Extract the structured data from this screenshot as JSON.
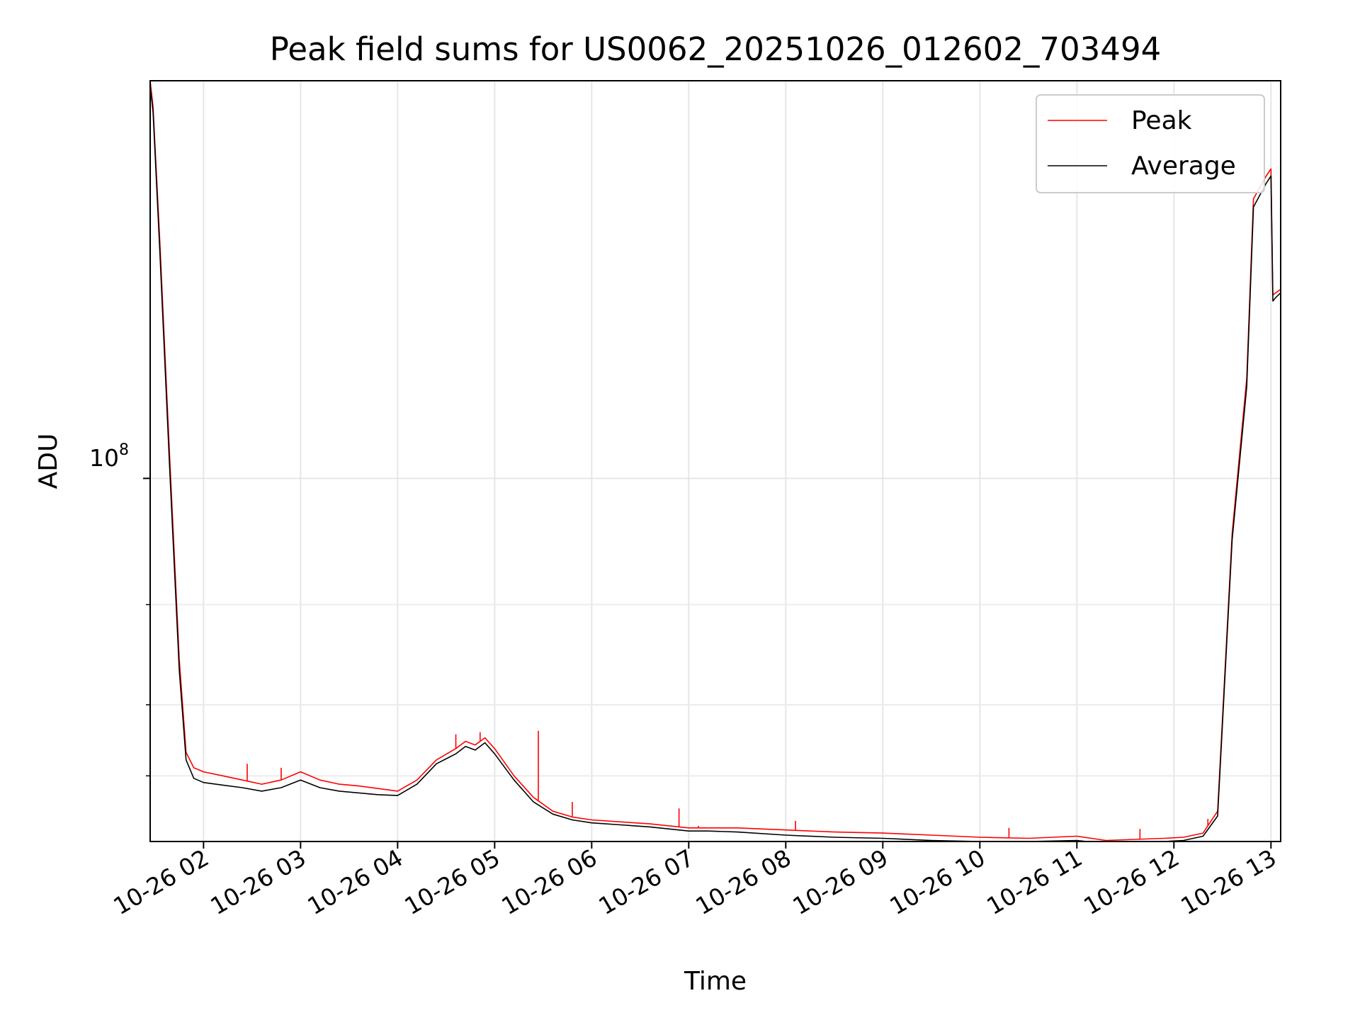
{
  "chart_data": {
    "type": "line",
    "title": "Peak field sums for US0062_20251026_012602_703494",
    "xlabel": "Time",
    "ylabel": "ADU",
    "y_scale": "log",
    "y_major_tick": {
      "value": 100000000,
      "base": "10",
      "exp": "8"
    },
    "y_minor_ticks": [
      30000000,
      40000000,
      60000000
    ],
    "ylim": [
      23000000,
      500000000
    ],
    "x_unit": "hours since 2025-10-26 00:00",
    "xlim": [
      1.45,
      13.1
    ],
    "x_ticks": [
      {
        "value": 2,
        "label": "10-26 02"
      },
      {
        "value": 3,
        "label": "10-26 03"
      },
      {
        "value": 4,
        "label": "10-26 04"
      },
      {
        "value": 5,
        "label": "10-26 05"
      },
      {
        "value": 6,
        "label": "10-26 06"
      },
      {
        "value": 7,
        "label": "10-26 07"
      },
      {
        "value": 8,
        "label": "10-26 08"
      },
      {
        "value": 9,
        "label": "10-26 09"
      },
      {
        "value": 10,
        "label": "10-26 10"
      },
      {
        "value": 11,
        "label": "10-26 11"
      },
      {
        "value": 12,
        "label": "10-26 12"
      },
      {
        "value": 13,
        "label": "10-26 13"
      }
    ],
    "grid": true,
    "legend_position": "top-right",
    "series": [
      {
        "name": "Peak",
        "color": "#ff0000",
        "points": [
          [
            1.45,
            500000000
          ],
          [
            1.48,
            450000000
          ],
          [
            1.55,
            260000000
          ],
          [
            1.65,
            110000000
          ],
          [
            1.75,
            48000000
          ],
          [
            1.82,
            33000000
          ],
          [
            1.9,
            31000000
          ],
          [
            2.0,
            30500000
          ],
          [
            2.2,
            30000000
          ],
          [
            2.4,
            29500000
          ],
          [
            2.6,
            29000000
          ],
          [
            2.8,
            29500000
          ],
          [
            3.0,
            30500000
          ],
          [
            3.2,
            29500000
          ],
          [
            3.4,
            29000000
          ],
          [
            3.6,
            28800000
          ],
          [
            3.8,
            28500000
          ],
          [
            4.0,
            28200000
          ],
          [
            4.2,
            29500000
          ],
          [
            4.4,
            32000000
          ],
          [
            4.6,
            33500000
          ],
          [
            4.7,
            34500000
          ],
          [
            4.8,
            34000000
          ],
          [
            4.9,
            35000000
          ],
          [
            5.0,
            33500000
          ],
          [
            5.2,
            30000000
          ],
          [
            5.4,
            27500000
          ],
          [
            5.6,
            26000000
          ],
          [
            5.8,
            25400000
          ],
          [
            6.0,
            25100000
          ],
          [
            6.3,
            24900000
          ],
          [
            6.6,
            24700000
          ],
          [
            7.0,
            24300000
          ],
          [
            7.2,
            24300000
          ],
          [
            7.5,
            24300000
          ],
          [
            8.0,
            24100000
          ],
          [
            8.5,
            23900000
          ],
          [
            9.0,
            23800000
          ],
          [
            9.5,
            23600000
          ],
          [
            10.0,
            23400000
          ],
          [
            10.5,
            23300000
          ],
          [
            11.0,
            23500000
          ],
          [
            11.3,
            23100000
          ],
          [
            11.6,
            23200000
          ],
          [
            11.9,
            23300000
          ],
          [
            12.1,
            23400000
          ],
          [
            12.3,
            23800000
          ],
          [
            12.45,
            26000000
          ],
          [
            12.6,
            80000000
          ],
          [
            12.75,
            150000000
          ],
          [
            12.82,
            310000000
          ],
          [
            12.95,
            340000000
          ],
          [
            13.0,
            350000000
          ],
          [
            13.02,
            210000000
          ],
          [
            13.05,
            212000000
          ],
          [
            13.1,
            215000000
          ]
        ],
        "spikes": [
          [
            2.45,
            31500000
          ],
          [
            2.8,
            31000000
          ],
          [
            4.6,
            35500000
          ],
          [
            4.85,
            35800000
          ],
          [
            5.45,
            36000000
          ],
          [
            5.8,
            27000000
          ],
          [
            6.9,
            26300000
          ],
          [
            7.1,
            24500000
          ],
          [
            8.1,
            25000000
          ],
          [
            10.3,
            24300000
          ],
          [
            11.65,
            24200000
          ],
          [
            12.35,
            25200000
          ]
        ]
      },
      {
        "name": "Average",
        "color": "#000000",
        "points": [
          [
            1.45,
            490000000
          ],
          [
            1.48,
            440000000
          ],
          [
            1.55,
            250000000
          ],
          [
            1.65,
            105000000
          ],
          [
            1.75,
            46000000
          ],
          [
            1.82,
            32000000
          ],
          [
            1.9,
            29700000
          ],
          [
            2.0,
            29200000
          ],
          [
            2.2,
            28900000
          ],
          [
            2.4,
            28600000
          ],
          [
            2.6,
            28200000
          ],
          [
            2.8,
            28600000
          ],
          [
            3.0,
            29500000
          ],
          [
            3.2,
            28600000
          ],
          [
            3.4,
            28200000
          ],
          [
            3.6,
            28000000
          ],
          [
            3.8,
            27800000
          ],
          [
            4.0,
            27700000
          ],
          [
            4.2,
            29000000
          ],
          [
            4.4,
            31500000
          ],
          [
            4.6,
            32800000
          ],
          [
            4.7,
            33800000
          ],
          [
            4.8,
            33300000
          ],
          [
            4.9,
            34300000
          ],
          [
            5.0,
            32800000
          ],
          [
            5.2,
            29500000
          ],
          [
            5.4,
            27000000
          ],
          [
            5.6,
            25700000
          ],
          [
            5.8,
            25100000
          ],
          [
            6.0,
            24800000
          ],
          [
            6.3,
            24600000
          ],
          [
            6.6,
            24400000
          ],
          [
            7.0,
            24000000
          ],
          [
            7.2,
            24000000
          ],
          [
            7.5,
            23900000
          ],
          [
            8.0,
            23600000
          ],
          [
            8.5,
            23400000
          ],
          [
            9.0,
            23300000
          ],
          [
            9.5,
            23100000
          ],
          [
            10.0,
            23000000
          ],
          [
            10.5,
            23000000
          ],
          [
            11.0,
            23100000
          ],
          [
            11.3,
            22800000
          ],
          [
            11.6,
            22900000
          ],
          [
            11.9,
            23000000
          ],
          [
            12.1,
            23100000
          ],
          [
            12.3,
            23500000
          ],
          [
            12.45,
            25500000
          ],
          [
            12.6,
            78000000
          ],
          [
            12.75,
            145000000
          ],
          [
            12.82,
            300000000
          ],
          [
            12.95,
            330000000
          ],
          [
            13.0,
            340000000
          ],
          [
            13.02,
            205000000
          ],
          [
            13.05,
            208000000
          ],
          [
            13.1,
            212000000
          ]
        ]
      }
    ]
  }
}
